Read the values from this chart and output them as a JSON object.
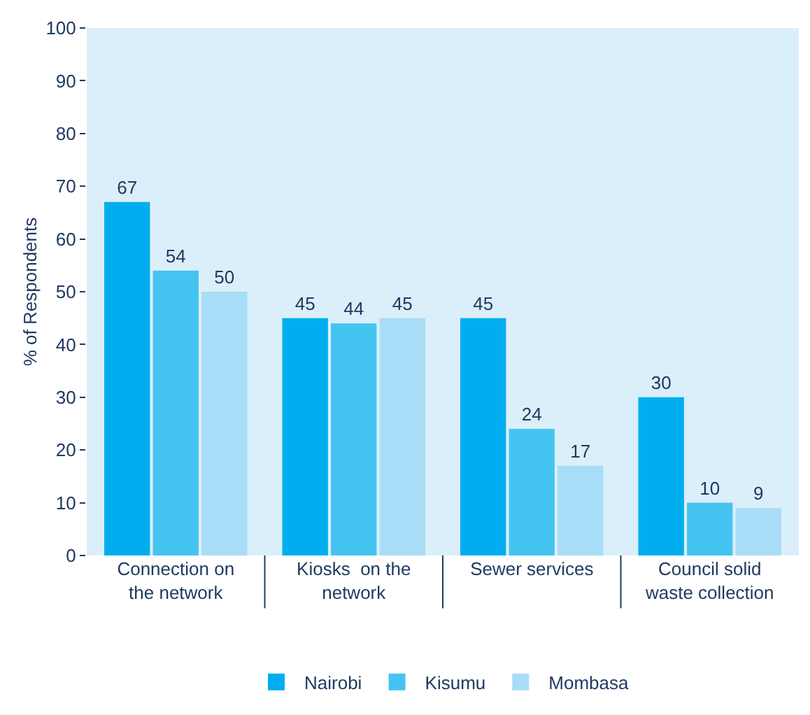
{
  "chart_data": {
    "type": "bar",
    "ylabel": "% of Respondents",
    "categories": [
      "Connection on the network",
      "Kiosks  on the network",
      "Sewer services",
      "Council solid waste collection"
    ],
    "series": [
      {
        "name": "Nairobi",
        "color": "#00aeef",
        "values": [
          67,
          45,
          45,
          30
        ]
      },
      {
        "name": "Kisumu",
        "color": "#45c4f2",
        "values": [
          54,
          44,
          24,
          10
        ]
      },
      {
        "name": "Mombasa",
        "color": "#a8ddf7",
        "values": [
          50,
          45,
          17,
          9
        ]
      }
    ],
    "ylim": [
      0,
      100
    ],
    "yticks": [
      0,
      10,
      20,
      30,
      40,
      50,
      60,
      70,
      80,
      90,
      100
    ],
    "data_labels": true,
    "grid": false,
    "legend": "bottom"
  }
}
